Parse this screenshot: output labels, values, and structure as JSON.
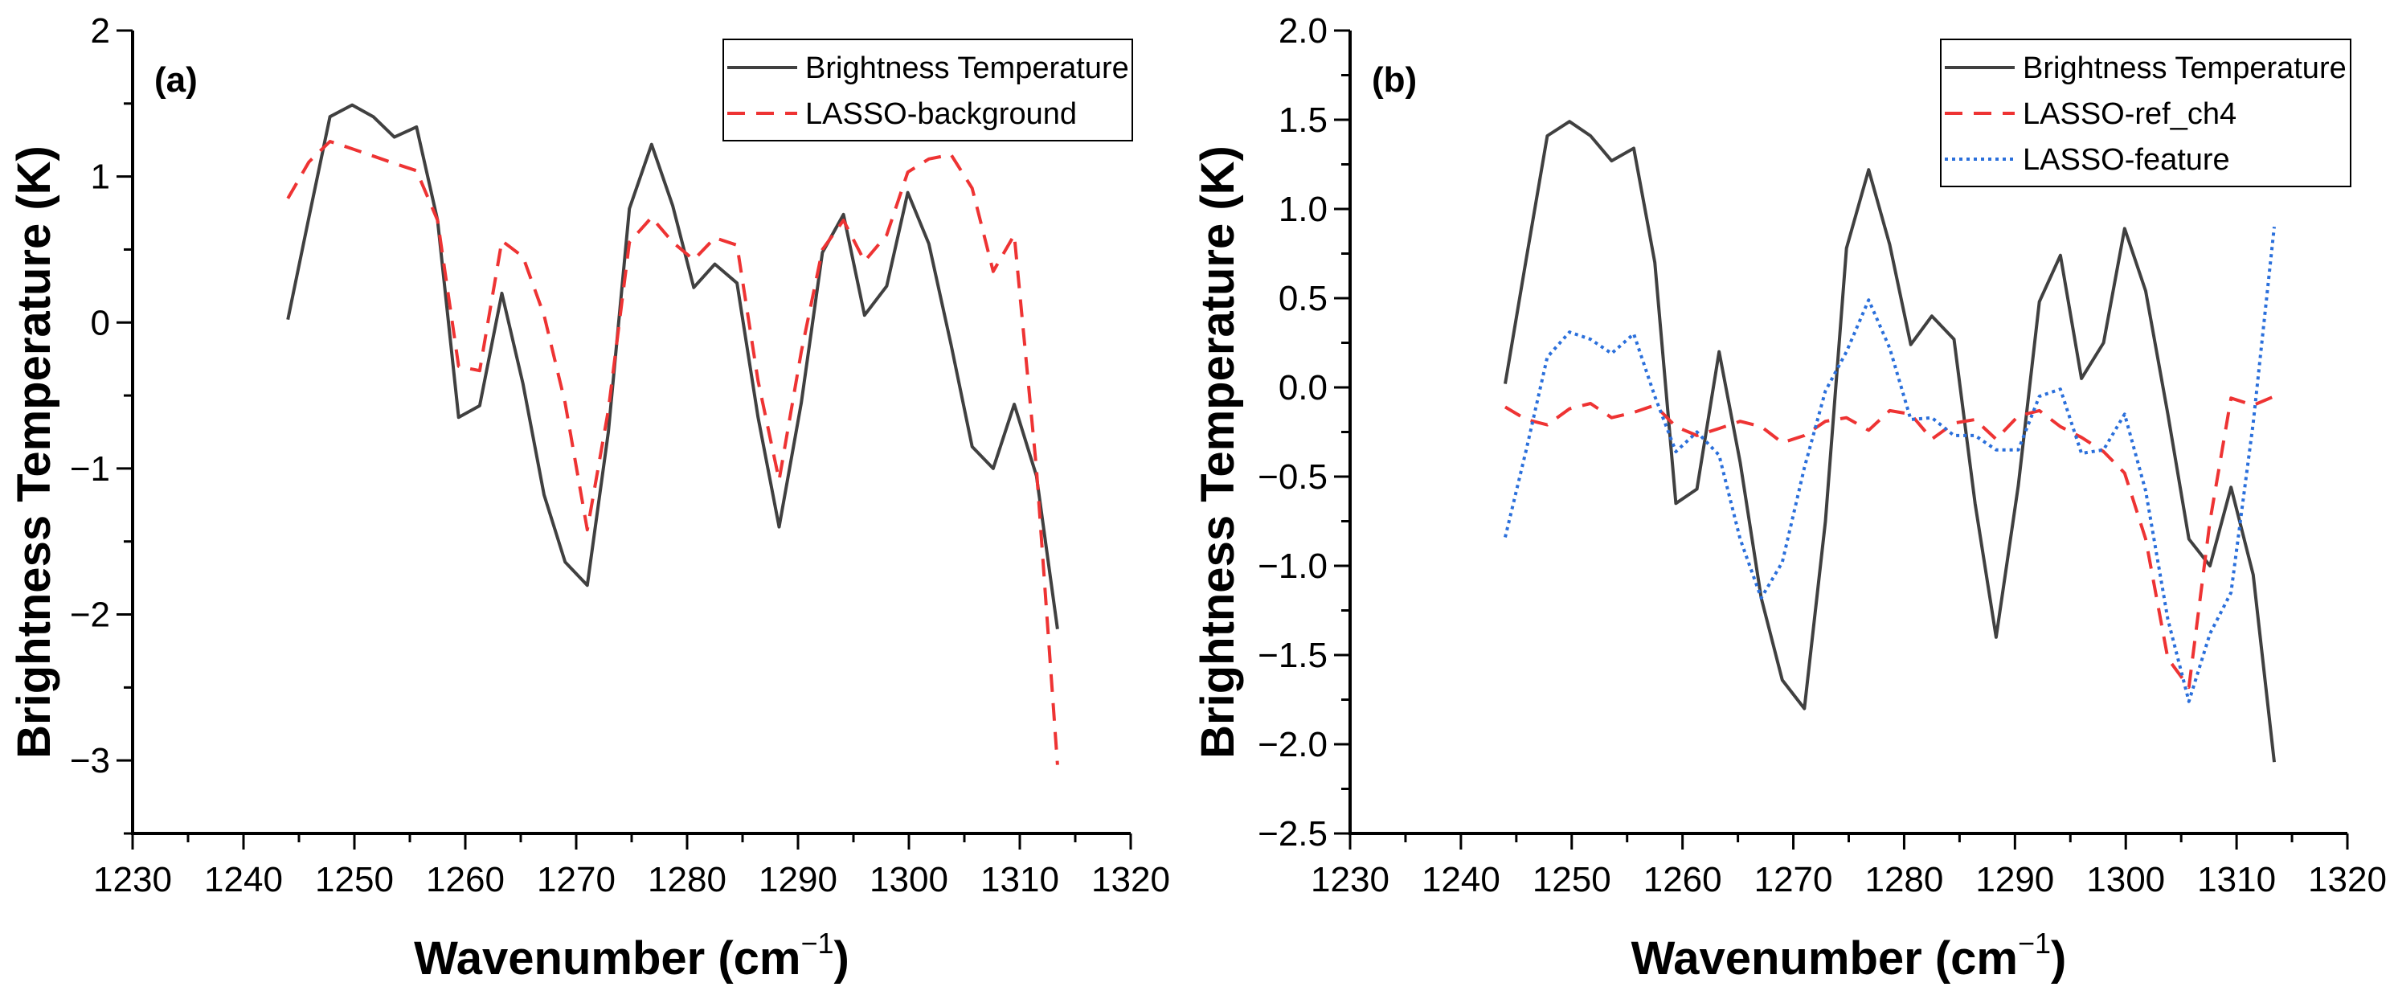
{
  "chart_data": [
    {
      "type": "line",
      "panel_label": "(a)",
      "xlabel": "Wavenumber (cm",
      "xlabel_sup": "−1",
      "xlabel_end": ")",
      "ylabel": "Brightness Temperature (K)",
      "xlim": [
        1230,
        1320
      ],
      "ylim": [
        -3.5,
        2
      ],
      "xticks": [
        1230,
        1240,
        1250,
        1260,
        1270,
        1280,
        1290,
        1300,
        1310,
        1320
      ],
      "yticks": [
        -3,
        -2,
        -1,
        0,
        1,
        2
      ],
      "ytick_labels": [
        "−3",
        "−2",
        "−1",
        "0",
        "1",
        "2"
      ],
      "grid": false,
      "legend_placement": "top-right",
      "x": [
        1244.0,
        1245.9,
        1247.8,
        1249.8,
        1251.7,
        1253.6,
        1255.6,
        1257.5,
        1259.4,
        1261.3,
        1263.3,
        1265.2,
        1267.1,
        1269.0,
        1271.0,
        1272.9,
        1274.8,
        1276.8,
        1278.7,
        1280.6,
        1282.5,
        1284.5,
        1286.4,
        1288.3,
        1290.3,
        1292.2,
        1294.1,
        1296.0,
        1298.0,
        1299.9,
        1301.8,
        1303.8,
        1305.7,
        1307.6,
        1309.5,
        1311.5,
        1313.4
      ],
      "series": [
        {
          "name": "Brightness Temperature",
          "color": "#404040",
          "style": "solid",
          "values": [
            0.02,
            0.72,
            1.41,
            1.49,
            1.41,
            1.27,
            1.34,
            0.7,
            -0.65,
            -0.57,
            0.2,
            -0.42,
            -1.18,
            -1.64,
            -1.8,
            -0.75,
            0.78,
            1.22,
            0.8,
            0.24,
            0.4,
            0.27,
            -0.65,
            -1.4,
            -0.55,
            0.48,
            0.74,
            0.05,
            0.25,
            0.89,
            0.54,
            -0.15,
            -0.85,
            -1.0,
            -0.56,
            -1.05,
            -2.1
          ]
        },
        {
          "name": "LASSO-background",
          "color": "#ee3333",
          "style": "dashed",
          "values": [
            0.85,
            1.1,
            1.24,
            1.19,
            1.14,
            1.09,
            1.04,
            0.7,
            -0.3,
            -0.33,
            0.56,
            0.45,
            0.05,
            -0.55,
            -1.42,
            -0.6,
            0.55,
            0.72,
            0.55,
            0.43,
            0.58,
            0.53,
            -0.4,
            -1.08,
            -0.2,
            0.5,
            0.7,
            0.42,
            0.6,
            1.03,
            1.12,
            1.15,
            0.92,
            0.35,
            0.6,
            -1.0,
            -3.03
          ]
        }
      ]
    },
    {
      "type": "line",
      "panel_label": "(b)",
      "xlabel": "Wavenumber (cm",
      "xlabel_sup": "−1",
      "xlabel_end": ")",
      "ylabel": "Brightness Temperature (K)",
      "xlim": [
        1230,
        1320
      ],
      "ylim": [
        -2.5,
        2.0
      ],
      "xticks": [
        1230,
        1240,
        1250,
        1260,
        1270,
        1280,
        1290,
        1300,
        1310,
        1320
      ],
      "yticks": [
        -2.5,
        -2.0,
        -1.5,
        -1.0,
        -0.5,
        0.0,
        0.5,
        1.0,
        1.5,
        2.0
      ],
      "ytick_labels": [
        "−2.5",
        "−2.0",
        "−1.5",
        "−1.0",
        "−0.5",
        "0.0",
        "0.5",
        "1.0",
        "1.5",
        "2.0"
      ],
      "grid": false,
      "legend_placement": "top-right",
      "x": [
        1244.0,
        1245.9,
        1247.8,
        1249.8,
        1251.7,
        1253.6,
        1255.6,
        1257.5,
        1259.4,
        1261.3,
        1263.3,
        1265.2,
        1267.1,
        1269.0,
        1271.0,
        1272.9,
        1274.8,
        1276.8,
        1278.7,
        1280.6,
        1282.5,
        1284.5,
        1286.4,
        1288.3,
        1290.3,
        1292.2,
        1294.1,
        1296.0,
        1298.0,
        1299.9,
        1301.8,
        1303.8,
        1305.7,
        1307.6,
        1309.5,
        1311.5,
        1313.4
      ],
      "series": [
        {
          "name": "Brightness Temperature",
          "color": "#404040",
          "style": "solid",
          "values": [
            0.02,
            0.72,
            1.41,
            1.49,
            1.41,
            1.27,
            1.34,
            0.7,
            -0.65,
            -0.57,
            0.2,
            -0.42,
            -1.18,
            -1.64,
            -1.8,
            -0.75,
            0.78,
            1.22,
            0.8,
            0.24,
            0.4,
            0.27,
            -0.65,
            -1.4,
            -0.55,
            0.48,
            0.74,
            0.05,
            0.25,
            0.89,
            0.54,
            -0.15,
            -0.85,
            -1.0,
            -0.56,
            -1.05,
            -2.1
          ]
        },
        {
          "name": "LASSO-ref_ch4",
          "color": "#ee3333",
          "style": "dashed",
          "values": [
            -0.11,
            -0.18,
            -0.21,
            -0.12,
            -0.09,
            -0.17,
            -0.14,
            -0.1,
            -0.22,
            -0.27,
            -0.23,
            -0.19,
            -0.22,
            -0.31,
            -0.27,
            -0.19,
            -0.17,
            -0.24,
            -0.13,
            -0.15,
            -0.29,
            -0.2,
            -0.18,
            -0.29,
            -0.16,
            -0.13,
            -0.22,
            -0.28,
            -0.36,
            -0.48,
            -0.85,
            -1.52,
            -1.68,
            -0.75,
            -0.06,
            -0.1,
            -0.05
          ]
        },
        {
          "name": "LASSO-feature",
          "color": "#2a6fdb",
          "style": "dotted",
          "values": [
            -0.84,
            -0.35,
            0.17,
            0.31,
            0.27,
            0.19,
            0.3,
            -0.05,
            -0.36,
            -0.25,
            -0.38,
            -0.85,
            -1.18,
            -0.98,
            -0.45,
            -0.02,
            0.2,
            0.49,
            0.22,
            -0.18,
            -0.17,
            -0.27,
            -0.27,
            -0.35,
            -0.35,
            -0.05,
            -0.01,
            -0.37,
            -0.35,
            -0.15,
            -0.58,
            -1.3,
            -1.76,
            -1.38,
            -1.15,
            -0.2,
            0.9
          ]
        }
      ]
    }
  ]
}
